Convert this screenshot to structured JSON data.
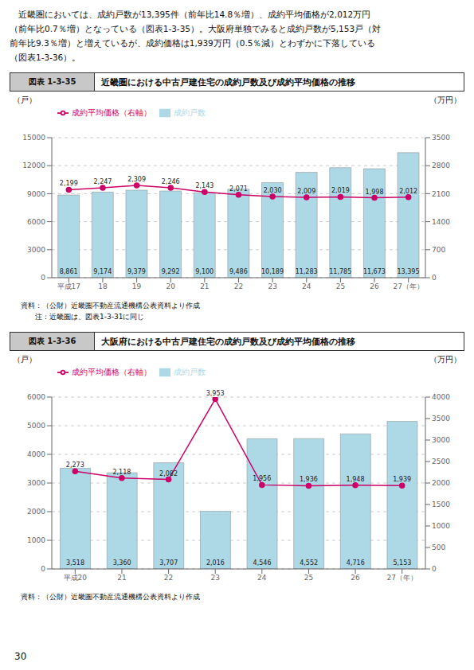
{
  "annotations": [
    "　近畿圏においては、成約戸数が13,395件（前年比14.8％増）、成約平均価格が2,012万円\n（前年比0.7％増）となっている（図表1-3-35）。大阪府単独でみると成約戸数が5,153戸（対\n前年比9.3％増）と増えているが、成約価格は1,939万円（0.5％減）とわずかに下落している\n（図表1-3-36）。",
    "30"
  ],
  "chart_data": [
    {
      "type": "bar",
      "subtitle": "図表 1-3-35",
      "title": "近畿圏における中古戸建住宅の成約戸数及び成約平均価格の推移",
      "ylabel": "（戸）",
      "y2label": "（万円）",
      "categories": [
        "平成17",
        "18",
        "19",
        "20",
        "21",
        "22",
        "23",
        "24",
        "25",
        "26",
        "27（年）"
      ],
      "series": [
        {
          "name": "成約戸数",
          "type": "bar",
          "color": "#add8e6",
          "values": [
            8861,
            9174,
            9379,
            9292,
            9100,
            9486,
            10189,
            11283,
            11785,
            11673,
            13395
          ],
          "value_labels": [
            "8,861",
            "9,174",
            "9,379",
            "9,292",
            "9,100",
            "9,486",
            "10,189",
            "11,283",
            "11,785",
            "11,673",
            "13,395"
          ]
        },
        {
          "name": "成約平均価格（右軸）",
          "type": "line",
          "axis": "y2",
          "color": "#cc0066",
          "marker": "circle",
          "values": [
            2199,
            2247,
            2309,
            2246,
            2143,
            2071,
            2030,
            2009,
            2019,
            1998,
            2012
          ],
          "value_labels": [
            "2,199",
            "2,247",
            "2,309",
            "2,246",
            "2,143",
            "2,071",
            "2,030",
            "2,009",
            "2,019",
            "1,998",
            "2,012"
          ]
        }
      ],
      "ylim": [
        0,
        15000
      ],
      "yticks": [
        0,
        3000,
        6000,
        9000,
        12000,
        15000
      ],
      "y2lim": [
        0,
        3500
      ],
      "y2ticks": [
        0,
        700,
        1400,
        2100,
        2800,
        3500
      ],
      "grid": true,
      "legend": "upper left",
      "data_labels": true,
      "annotations": [
        "資料：（公財）近畿圏不動産流通機構公表資料より作成",
        "注：近畿圏は、図表1-3-31に同じ"
      ]
    },
    {
      "type": "bar",
      "subtitle": "図表 1-3-36",
      "title": "大阪府における中古戸建住宅の成約戸数及び成約平均価格の推移",
      "ylabel": "（戸）",
      "y2label": "（万円）",
      "categories": [
        "平成20",
        "21",
        "22",
        "23",
        "24",
        "25",
        "26",
        "27（年）"
      ],
      "series": [
        {
          "name": "成約戸数",
          "type": "bar",
          "color": "#add8e6",
          "values": [
            3518,
            3360,
            3707,
            2016,
            4546,
            4552,
            4716,
            5153
          ],
          "value_labels": [
            "3,518",
            "3,360",
            "3,707",
            "2,016",
            "4,546",
            "4,552",
            "4,716",
            "5,153"
          ]
        },
        {
          "name": "成約平均価格（右軸）",
          "type": "line",
          "axis": "y2",
          "color": "#cc0066",
          "marker": "circle",
          "values": [
            2273,
            2118,
            2082,
            3953,
            1956,
            1936,
            1948,
            1939
          ],
          "value_labels": [
            "2,273",
            "2,118",
            "2,082",
            "3,953",
            "1,956",
            "1,936",
            "1,948",
            "1,939"
          ]
        }
      ],
      "ylim": [
        0,
        6000
      ],
      "yticks": [
        0,
        1000,
        2000,
        3000,
        4000,
        5000,
        6000
      ],
      "y2lim": [
        0,
        4000
      ],
      "y2ticks": [
        0,
        500,
        1000,
        1500,
        2000,
        2500,
        3000,
        3500,
        4000
      ],
      "grid": true,
      "legend": "upper left",
      "data_labels": true,
      "annotations": [
        "資料：（公財）近畿圏不動産流通機構公表資料より作成"
      ]
    }
  ]
}
